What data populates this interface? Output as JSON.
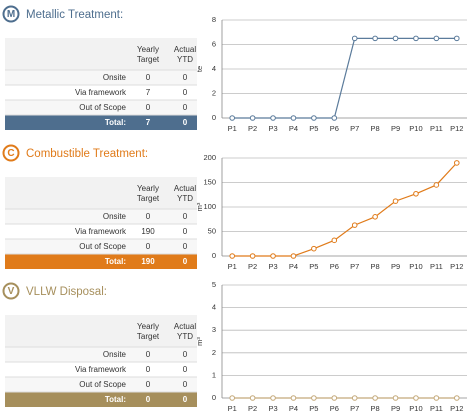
{
  "panels": [
    {
      "icon": "M",
      "title": "Metallic Treatment:",
      "color": "#4e6e8e",
      "table": {
        "headers": [
          "Yearly Target",
          "Actual YTD"
        ],
        "rows": [
          [
            "Onsite",
            "0",
            "0"
          ],
          [
            "Via framework",
            "7",
            "0"
          ],
          [
            "Out of Scope",
            "0",
            "0"
          ],
          [
            "Total:",
            "7",
            "0"
          ]
        ]
      }
    },
    {
      "icon": "C",
      "title": "Combustible Treatment:",
      "color": "#e07b1a",
      "table": {
        "headers": [
          "Yearly Target",
          "Actual YTD"
        ],
        "rows": [
          [
            "Onsite",
            "0",
            "0"
          ],
          [
            "Via framework",
            "190",
            "0"
          ],
          [
            "Out of Scope",
            "0",
            "0"
          ],
          [
            "Total:",
            "190",
            "0"
          ]
        ]
      }
    },
    {
      "icon": "V",
      "title": "VLLW Disposal:",
      "color": "#a68f5c",
      "table": {
        "headers": [
          "Yearly Target",
          "Actual YTD"
        ],
        "rows": [
          [
            "Onsite",
            "0",
            "0"
          ],
          [
            "Via framework",
            "0",
            "0"
          ],
          [
            "Out of Scope",
            "0",
            "0"
          ],
          [
            "Total:",
            "0",
            "0"
          ]
        ]
      }
    }
  ],
  "chart_data": [
    {
      "type": "line",
      "ylabel": "te",
      "categories": [
        "P1",
        "P2",
        "P3",
        "P4",
        "P5",
        "P6",
        "P7",
        "P8",
        "P9",
        "P10",
        "P11",
        "P12"
      ],
      "values": [
        0,
        0,
        0,
        0,
        0,
        0,
        6.5,
        6.5,
        6.5,
        6.5,
        6.5,
        6.5
      ],
      "color": "#5b7b9b",
      "ylim": [
        0,
        8
      ],
      "yticks": [
        0,
        2,
        4,
        6,
        8
      ],
      "grid": true
    },
    {
      "type": "line",
      "ylabel": "m³",
      "categories": [
        "P1",
        "P2",
        "P3",
        "P4",
        "P5",
        "P6",
        "P7",
        "P8",
        "P9",
        "P10",
        "P11",
        "P12"
      ],
      "values": [
        0,
        0,
        0,
        0,
        15,
        32,
        63,
        80,
        112,
        127,
        145,
        190
      ],
      "color": "#e07b1a",
      "ylim": [
        0,
        200
      ],
      "yticks": [
        0,
        50,
        100,
        150,
        200
      ],
      "grid": true
    },
    {
      "type": "line",
      "ylabel": "m³",
      "categories": [
        "P1",
        "P2",
        "P3",
        "P4",
        "P5",
        "P6",
        "P7",
        "P8",
        "P9",
        "P10",
        "P11",
        "P12"
      ],
      "values": [
        0,
        0,
        0,
        0,
        0,
        0,
        0,
        0,
        0,
        0,
        0,
        0
      ],
      "color": "#c4a97a",
      "ylim": [
        0,
        5
      ],
      "yticks": [
        0,
        1,
        2,
        3,
        4,
        5
      ],
      "grid": true
    }
  ]
}
